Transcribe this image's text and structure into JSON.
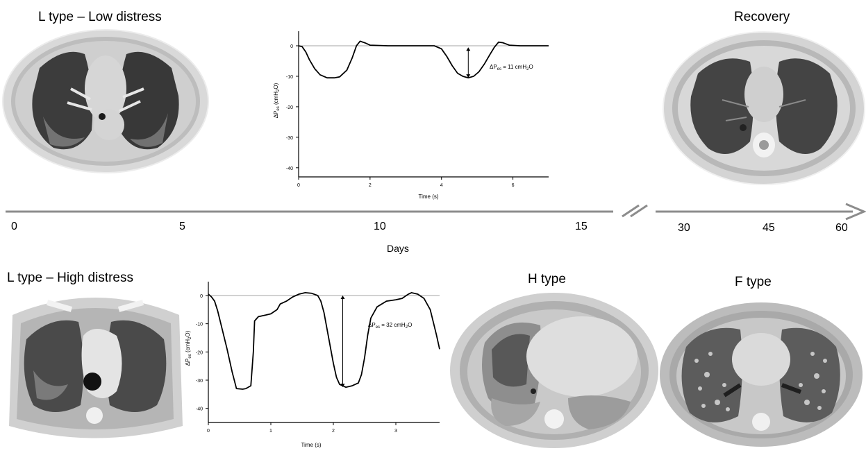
{
  "panels": {
    "low": {
      "title": "L type – Low distress"
    },
    "recovery": {
      "title": "Recovery"
    },
    "high": {
      "title": "L type – High distress"
    },
    "h_type": {
      "title": "H type"
    },
    "f_type": {
      "title": "F type"
    }
  },
  "timeline": {
    "xlabel": "Days",
    "ticks_left": [
      "0",
      "5",
      "10",
      "15"
    ],
    "ticks_right": [
      "30",
      "45",
      "60"
    ]
  },
  "chart_data": [
    {
      "type": "line",
      "xlabel": "Time (s)",
      "ylabel": "ΔPes (cmH2O)",
      "ylabel_parts": {
        "delta": "ΔP",
        "sub": "es",
        "unit_a": "(cmH",
        "unit_sub": "2",
        "unit_b": "O)"
      },
      "xlim": [
        0,
        7
      ],
      "ylim": [
        -43,
        5
      ],
      "xticks": [
        "0",
        "2",
        "4",
        "6"
      ],
      "yticks": [
        "0",
        "-10",
        "-20",
        "-30",
        "-40"
      ],
      "annotation": {
        "pre": "ΔP",
        "sub": "es",
        "mid": " = 11 cmH",
        "sub2": "2",
        "post": "O",
        "value": 11,
        "x": 4.75,
        "y_top": -0.5,
        "y_bottom": -10.5
      },
      "series": [
        {
          "values": [
            [
              0,
              0
            ],
            [
              0.1,
              -0.3
            ],
            [
              0.2,
              -2
            ],
            [
              0.3,
              -4.5
            ],
            [
              0.45,
              -7.5
            ],
            [
              0.6,
              -9.5
            ],
            [
              0.8,
              -10.5
            ],
            [
              1.0,
              -10.5
            ],
            [
              1.15,
              -10.2
            ],
            [
              1.35,
              -8
            ],
            [
              1.5,
              -4
            ],
            [
              1.62,
              0
            ],
            [
              1.72,
              1.5
            ],
            [
              1.85,
              1
            ],
            [
              2.0,
              0.2
            ],
            [
              2.5,
              0
            ],
            [
              3.2,
              0
            ],
            [
              3.8,
              0
            ],
            [
              4.0,
              -1
            ],
            [
              4.15,
              -3.5
            ],
            [
              4.3,
              -6.5
            ],
            [
              4.45,
              -9
            ],
            [
              4.6,
              -10
            ],
            [
              4.75,
              -10.5
            ],
            [
              4.9,
              -10
            ],
            [
              5.05,
              -8.5
            ],
            [
              5.2,
              -6
            ],
            [
              5.35,
              -3
            ],
            [
              5.48,
              -0.5
            ],
            [
              5.6,
              1.2
            ],
            [
              5.72,
              1
            ],
            [
              5.9,
              0.2
            ],
            [
              6.2,
              0
            ],
            [
              7.0,
              0
            ]
          ]
        }
      ]
    },
    {
      "type": "line",
      "xlabel": "Time (s)",
      "ylabel": "ΔPes (cmH2O)",
      "ylabel_parts": {
        "delta": "ΔP",
        "sub": "es",
        "unit_a": "(cmH",
        "unit_sub": "2",
        "unit_b": "O)"
      },
      "xlim": [
        0,
        3.7
      ],
      "ylim": [
        -45,
        3
      ],
      "xticks": [
        "0",
        "1",
        "2",
        "3"
      ],
      "yticks": [
        "0",
        "-10",
        "-20",
        "-30",
        "-40"
      ],
      "annotation": {
        "pre": "ΔP",
        "sub": "es",
        "mid": " = 32 cmH",
        "sub2": "2",
        "post": "O",
        "value": 32,
        "x": 2.15,
        "y_top": 0,
        "y_bottom": -32.5
      },
      "series": [
        {
          "values": [
            [
              0,
              0.5
            ],
            [
              0.05,
              -0.5
            ],
            [
              0.1,
              -2
            ],
            [
              0.15,
              -5.5
            ],
            [
              0.2,
              -10
            ],
            [
              0.3,
              -19
            ],
            [
              0.38,
              -27
            ],
            [
              0.45,
              -33
            ],
            [
              0.55,
              -33.2
            ],
            [
              0.6,
              -33
            ],
            [
              0.68,
              -32
            ],
            [
              0.72,
              -20
            ],
            [
              0.74,
              -9
            ],
            [
              0.8,
              -7.5
            ],
            [
              0.9,
              -7
            ],
            [
              1.0,
              -6.5
            ],
            [
              1.1,
              -5
            ],
            [
              1.15,
              -3
            ],
            [
              1.25,
              -2
            ],
            [
              1.35,
              -0.5
            ],
            [
              1.45,
              0.5
            ],
            [
              1.55,
              1
            ],
            [
              1.65,
              0.8
            ],
            [
              1.75,
              0
            ],
            [
              1.8,
              -2
            ],
            [
              1.85,
              -6
            ],
            [
              1.9,
              -12
            ],
            [
              1.95,
              -18
            ],
            [
              2.0,
              -24
            ],
            [
              2.05,
              -29
            ],
            [
              2.1,
              -31.5
            ],
            [
              2.2,
              -32.5
            ],
            [
              2.3,
              -32
            ],
            [
              2.4,
              -31
            ],
            [
              2.45,
              -28
            ],
            [
              2.5,
              -22
            ],
            [
              2.55,
              -14
            ],
            [
              2.6,
              -8
            ],
            [
              2.7,
              -4
            ],
            [
              2.85,
              -2
            ],
            [
              3.0,
              -1.5
            ],
            [
              3.1,
              -1
            ],
            [
              3.2,
              0.5
            ],
            [
              3.25,
              1
            ],
            [
              3.35,
              0.5
            ],
            [
              3.45,
              -1
            ],
            [
              3.55,
              -5
            ],
            [
              3.65,
              -14
            ],
            [
              3.7,
              -19
            ]
          ]
        }
      ]
    }
  ]
}
